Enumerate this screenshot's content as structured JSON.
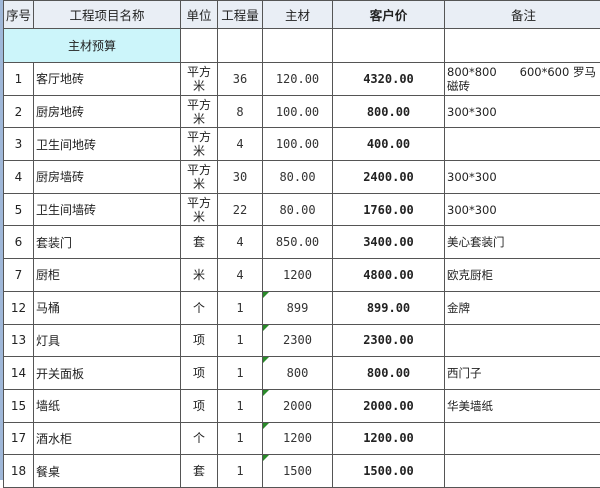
{
  "headers": [
    "序号",
    "工程项目名称",
    "单位",
    "工程量",
    "主材",
    "客户价",
    "备注"
  ],
  "section_title": "主材预算",
  "rows": [
    {
      "no": "1",
      "name": "客厅地砖",
      "unit": "平方米",
      "qty": "36",
      "material": "120.00",
      "price": "4320.00",
      "note": "800*800　　600*600 罗马磁砖",
      "flag": false
    },
    {
      "no": "2",
      "name": "厨房地砖",
      "unit": "平方米",
      "qty": "8",
      "material": "100.00",
      "price": "800.00",
      "note": "300*300",
      "flag": false
    },
    {
      "no": "3",
      "name": "卫生间地砖",
      "unit": "平方米",
      "qty": "4",
      "material": "100.00",
      "price": "400.00",
      "note": "",
      "flag": false
    },
    {
      "no": "4",
      "name": "厨房墙砖",
      "unit": "平方米",
      "qty": "30",
      "material": "80.00",
      "price": "2400.00",
      "note": "300*300",
      "flag": false
    },
    {
      "no": "5",
      "name": "卫生间墙砖",
      "unit": "平方米",
      "qty": "22",
      "material": "80.00",
      "price": "1760.00",
      "note": "300*300",
      "flag": false
    },
    {
      "no": "6",
      "name": "套装门",
      "unit": "套",
      "qty": "4",
      "material": "850.00",
      "price": "3400.00",
      "note": "美心套装门",
      "flag": false
    },
    {
      "no": "7",
      "name": "厨柜",
      "unit": "米",
      "qty": "4",
      "material": "1200",
      "price": "4800.00",
      "note": "欧克厨柜",
      "flag": false
    },
    {
      "no": "12",
      "name": "马桶",
      "unit": "个",
      "qty": "1",
      "material": "899",
      "price": "899.00",
      "note": "金牌",
      "flag": true
    },
    {
      "no": "13",
      "name": "灯具",
      "unit": "项",
      "qty": "1",
      "material": "2300",
      "price": "2300.00",
      "note": "",
      "flag": true
    },
    {
      "no": "14",
      "name": "开关面板",
      "unit": "项",
      "qty": "1",
      "material": "800",
      "price": "800.00",
      "note": "西门子",
      "flag": true
    },
    {
      "no": "15",
      "name": "墙纸",
      "unit": "项",
      "qty": "1",
      "material": "2000",
      "price": "2000.00",
      "note": "华美墙纸",
      "flag": true
    },
    {
      "no": "17",
      "name": "酒水柜",
      "unit": "个",
      "qty": "1",
      "material": "1200",
      "price": "1200.00",
      "note": "",
      "flag": true
    },
    {
      "no": "18",
      "name": "餐桌",
      "unit": "套",
      "qty": "1",
      "material": "1500",
      "price": "1500.00",
      "note": "",
      "flag": true
    }
  ],
  "colors": {
    "section_fill": "#ccf5fa",
    "flag": "#2a8a2a"
  }
}
